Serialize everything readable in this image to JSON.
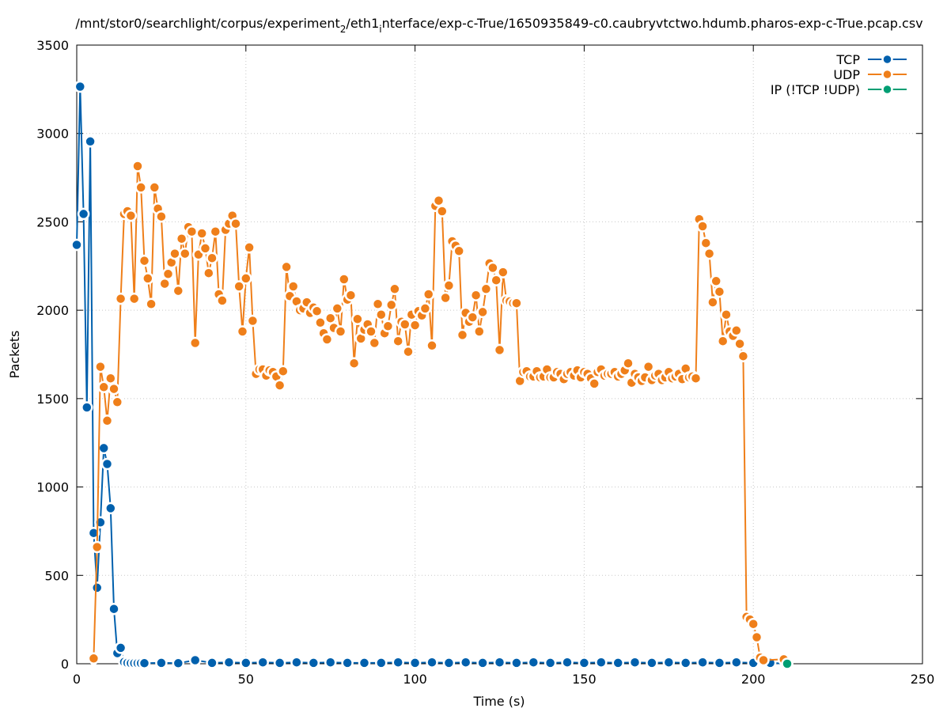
{
  "chart_data": {
    "type": "line",
    "title": "/mnt/stor0/searchlight/corpus/experiment_2/eth1_interface/exp-c-True/1650935849-c0.caubryvtctwo.hdumb.pharos-exp-c-True.pcap.csv",
    "title_parts": {
      "a": "/mnt/stor0/searchlight/corpus/experiment",
      "sub1": "2",
      "b": "/eth1",
      "sub2": "i",
      "c": "nterface/exp-c-True/1650935849-c0.caubryvtctwo.hdumb.pharos-exp-c-True.pcap.csv"
    },
    "xlabel": "Time (s)",
    "ylabel": "Packets",
    "xlim": [
      0,
      250
    ],
    "ylim": [
      0,
      3500
    ],
    "xticks": [
      0,
      50,
      100,
      150,
      200,
      250
    ],
    "yticks": [
      0,
      500,
      1000,
      1500,
      2000,
      2500,
      3000,
      3500
    ],
    "grid": true,
    "legend_position": "top-right",
    "series": [
      {
        "name": "TCP",
        "color": "#0060ad",
        "points": [
          [
            0,
            2370
          ],
          [
            1,
            3265
          ],
          [
            2,
            2545
          ],
          [
            3,
            1450
          ],
          [
            4,
            2955
          ],
          [
            5,
            740
          ],
          [
            6,
            430
          ],
          [
            7,
            800
          ],
          [
            8,
            1220
          ],
          [
            9,
            1130
          ],
          [
            10,
            880
          ],
          [
            11,
            310
          ],
          [
            12,
            60
          ],
          [
            13,
            90
          ],
          [
            14,
            10
          ],
          [
            15,
            5
          ],
          [
            16,
            3
          ],
          [
            17,
            3
          ],
          [
            18,
            3
          ],
          [
            19,
            3
          ],
          [
            20,
            3
          ],
          [
            25,
            5
          ],
          [
            30,
            3
          ],
          [
            35,
            20
          ],
          [
            40,
            5
          ],
          [
            45,
            8
          ],
          [
            50,
            5
          ],
          [
            55,
            8
          ],
          [
            60,
            5
          ],
          [
            65,
            8
          ],
          [
            70,
            5
          ],
          [
            75,
            8
          ],
          [
            80,
            5
          ],
          [
            85,
            5
          ],
          [
            90,
            5
          ],
          [
            95,
            8
          ],
          [
            100,
            5
          ],
          [
            105,
            8
          ],
          [
            110,
            5
          ],
          [
            115,
            8
          ],
          [
            120,
            5
          ],
          [
            125,
            8
          ],
          [
            130,
            5
          ],
          [
            135,
            8
          ],
          [
            140,
            5
          ],
          [
            145,
            8
          ],
          [
            150,
            5
          ],
          [
            155,
            8
          ],
          [
            160,
            5
          ],
          [
            165,
            8
          ],
          [
            170,
            5
          ],
          [
            175,
            8
          ],
          [
            180,
            5
          ],
          [
            185,
            8
          ],
          [
            190,
            5
          ],
          [
            195,
            8
          ],
          [
            200,
            5
          ],
          [
            205,
            5
          ],
          [
            210,
            0
          ]
        ]
      },
      {
        "name": "UDP",
        "color": "#ef7f1a",
        "points": [
          [
            5,
            30
          ],
          [
            6,
            660
          ],
          [
            7,
            1680
          ],
          [
            8,
            1565
          ],
          [
            9,
            1375
          ],
          [
            10,
            1615
          ],
          [
            11,
            1555
          ],
          [
            12,
            1480
          ],
          [
            13,
            2065
          ],
          [
            14,
            2545
          ],
          [
            15,
            2560
          ],
          [
            16,
            2535
          ],
          [
            17,
            2065
          ],
          [
            18,
            2815
          ],
          [
            19,
            2695
          ],
          [
            20,
            2280
          ],
          [
            21,
            2180
          ],
          [
            22,
            2035
          ],
          [
            23,
            2695
          ],
          [
            24,
            2575
          ],
          [
            25,
            2530
          ],
          [
            26,
            2150
          ],
          [
            27,
            2205
          ],
          [
            28,
            2270
          ],
          [
            29,
            2320
          ],
          [
            30,
            2110
          ],
          [
            31,
            2405
          ],
          [
            32,
            2320
          ],
          [
            33,
            2470
          ],
          [
            34,
            2445
          ],
          [
            35,
            1815
          ],
          [
            36,
            2315
          ],
          [
            37,
            2435
          ],
          [
            38,
            2350
          ],
          [
            39,
            2210
          ],
          [
            40,
            2295
          ],
          [
            41,
            2445
          ],
          [
            42,
            2090
          ],
          [
            43,
            2055
          ],
          [
            44,
            2455
          ],
          [
            45,
            2490
          ],
          [
            46,
            2535
          ],
          [
            47,
            2490
          ],
          [
            48,
            2135
          ],
          [
            49,
            1880
          ],
          [
            50,
            2180
          ],
          [
            51,
            2355
          ],
          [
            52,
            1940
          ],
          [
            53,
            1640
          ],
          [
            54,
            1665
          ],
          [
            55,
            1665
          ],
          [
            56,
            1630
          ],
          [
            57,
            1660
          ],
          [
            58,
            1650
          ],
          [
            59,
            1625
          ],
          [
            60,
            1575
          ],
          [
            61,
            1655
          ],
          [
            62,
            2245
          ],
          [
            63,
            2080
          ],
          [
            64,
            2135
          ],
          [
            65,
            2050
          ],
          [
            66,
            2000
          ],
          [
            67,
            2010
          ],
          [
            68,
            2045
          ],
          [
            69,
            1985
          ],
          [
            70,
            2015
          ],
          [
            71,
            1995
          ],
          [
            72,
            1930
          ],
          [
            73,
            1870
          ],
          [
            74,
            1835
          ],
          [
            75,
            1955
          ],
          [
            76,
            1900
          ],
          [
            77,
            2010
          ],
          [
            78,
            1880
          ],
          [
            79,
            2175
          ],
          [
            80,
            2060
          ],
          [
            81,
            2085
          ],
          [
            82,
            1700
          ],
          [
            83,
            1950
          ],
          [
            84,
            1840
          ],
          [
            85,
            1890
          ],
          [
            86,
            1920
          ],
          [
            87,
            1880
          ],
          [
            88,
            1815
          ],
          [
            89,
            2035
          ],
          [
            90,
            1975
          ],
          [
            91,
            1870
          ],
          [
            92,
            1910
          ],
          [
            93,
            2030
          ],
          [
            94,
            2120
          ],
          [
            95,
            1825
          ],
          [
            96,
            1935
          ],
          [
            97,
            1920
          ],
          [
            98,
            1765
          ],
          [
            99,
            1975
          ],
          [
            100,
            1915
          ],
          [
            101,
            1995
          ],
          [
            102,
            1970
          ],
          [
            103,
            2010
          ],
          [
            104,
            2090
          ],
          [
            105,
            1800
          ],
          [
            106,
            2590
          ],
          [
            107,
            2620
          ],
          [
            108,
            2560
          ],
          [
            109,
            2070
          ],
          [
            110,
            2140
          ],
          [
            111,
            2390
          ],
          [
            112,
            2365
          ],
          [
            113,
            2335
          ],
          [
            114,
            1860
          ],
          [
            115,
            1985
          ],
          [
            116,
            1935
          ],
          [
            117,
            1960
          ],
          [
            118,
            2085
          ],
          [
            119,
            1880
          ],
          [
            120,
            1990
          ],
          [
            121,
            2120
          ],
          [
            122,
            2265
          ],
          [
            123,
            2240
          ],
          [
            124,
            2170
          ],
          [
            125,
            1775
          ],
          [
            126,
            2215
          ],
          [
            127,
            2055
          ],
          [
            128,
            2050
          ],
          [
            129,
            2040
          ],
          [
            130,
            2040
          ],
          [
            131,
            1600
          ],
          [
            132,
            1650
          ],
          [
            133,
            1655
          ],
          [
            134,
            1625
          ],
          [
            135,
            1625
          ],
          [
            136,
            1655
          ],
          [
            137,
            1620
          ],
          [
            138,
            1625
          ],
          [
            139,
            1665
          ],
          [
            140,
            1620
          ],
          [
            141,
            1620
          ],
          [
            142,
            1650
          ],
          [
            143,
            1640
          ],
          [
            144,
            1610
          ],
          [
            145,
            1640
          ],
          [
            146,
            1650
          ],
          [
            147,
            1630
          ],
          [
            148,
            1660
          ],
          [
            149,
            1620
          ],
          [
            150,
            1650
          ],
          [
            151,
            1640
          ],
          [
            152,
            1615
          ],
          [
            153,
            1585
          ],
          [
            154,
            1650
          ],
          [
            155,
            1665
          ],
          [
            156,
            1630
          ],
          [
            157,
            1640
          ],
          [
            158,
            1640
          ],
          [
            159,
            1650
          ],
          [
            160,
            1625
          ],
          [
            161,
            1640
          ],
          [
            162,
            1660
          ],
          [
            163,
            1700
          ],
          [
            164,
            1590
          ],
          [
            165,
            1640
          ],
          [
            166,
            1620
          ],
          [
            167,
            1600
          ],
          [
            168,
            1620
          ],
          [
            169,
            1680
          ],
          [
            170,
            1605
          ],
          [
            171,
            1630
          ],
          [
            172,
            1640
          ],
          [
            173,
            1605
          ],
          [
            174,
            1620
          ],
          [
            175,
            1650
          ],
          [
            176,
            1615
          ],
          [
            177,
            1625
          ],
          [
            178,
            1640
          ],
          [
            179,
            1610
          ],
          [
            180,
            1670
          ],
          [
            181,
            1620
          ],
          [
            182,
            1625
          ],
          [
            183,
            1615
          ],
          [
            184,
            2515
          ],
          [
            185,
            2475
          ],
          [
            186,
            2380
          ],
          [
            187,
            2320
          ],
          [
            188,
            2045
          ],
          [
            189,
            2165
          ],
          [
            190,
            2105
          ],
          [
            191,
            1825
          ],
          [
            192,
            1975
          ],
          [
            193,
            1880
          ],
          [
            194,
            1855
          ],
          [
            195,
            1885
          ],
          [
            196,
            1810
          ],
          [
            197,
            1740
          ],
          [
            198,
            265
          ],
          [
            199,
            250
          ],
          [
            200,
            225
          ],
          [
            201,
            150
          ],
          [
            202,
            35
          ],
          [
            203,
            20
          ],
          [
            209,
            25
          ]
        ]
      },
      {
        "name": "IP (!TCP  !UDP)",
        "color": "#009e73",
        "points": [
          [
            210,
            0
          ]
        ]
      }
    ]
  }
}
